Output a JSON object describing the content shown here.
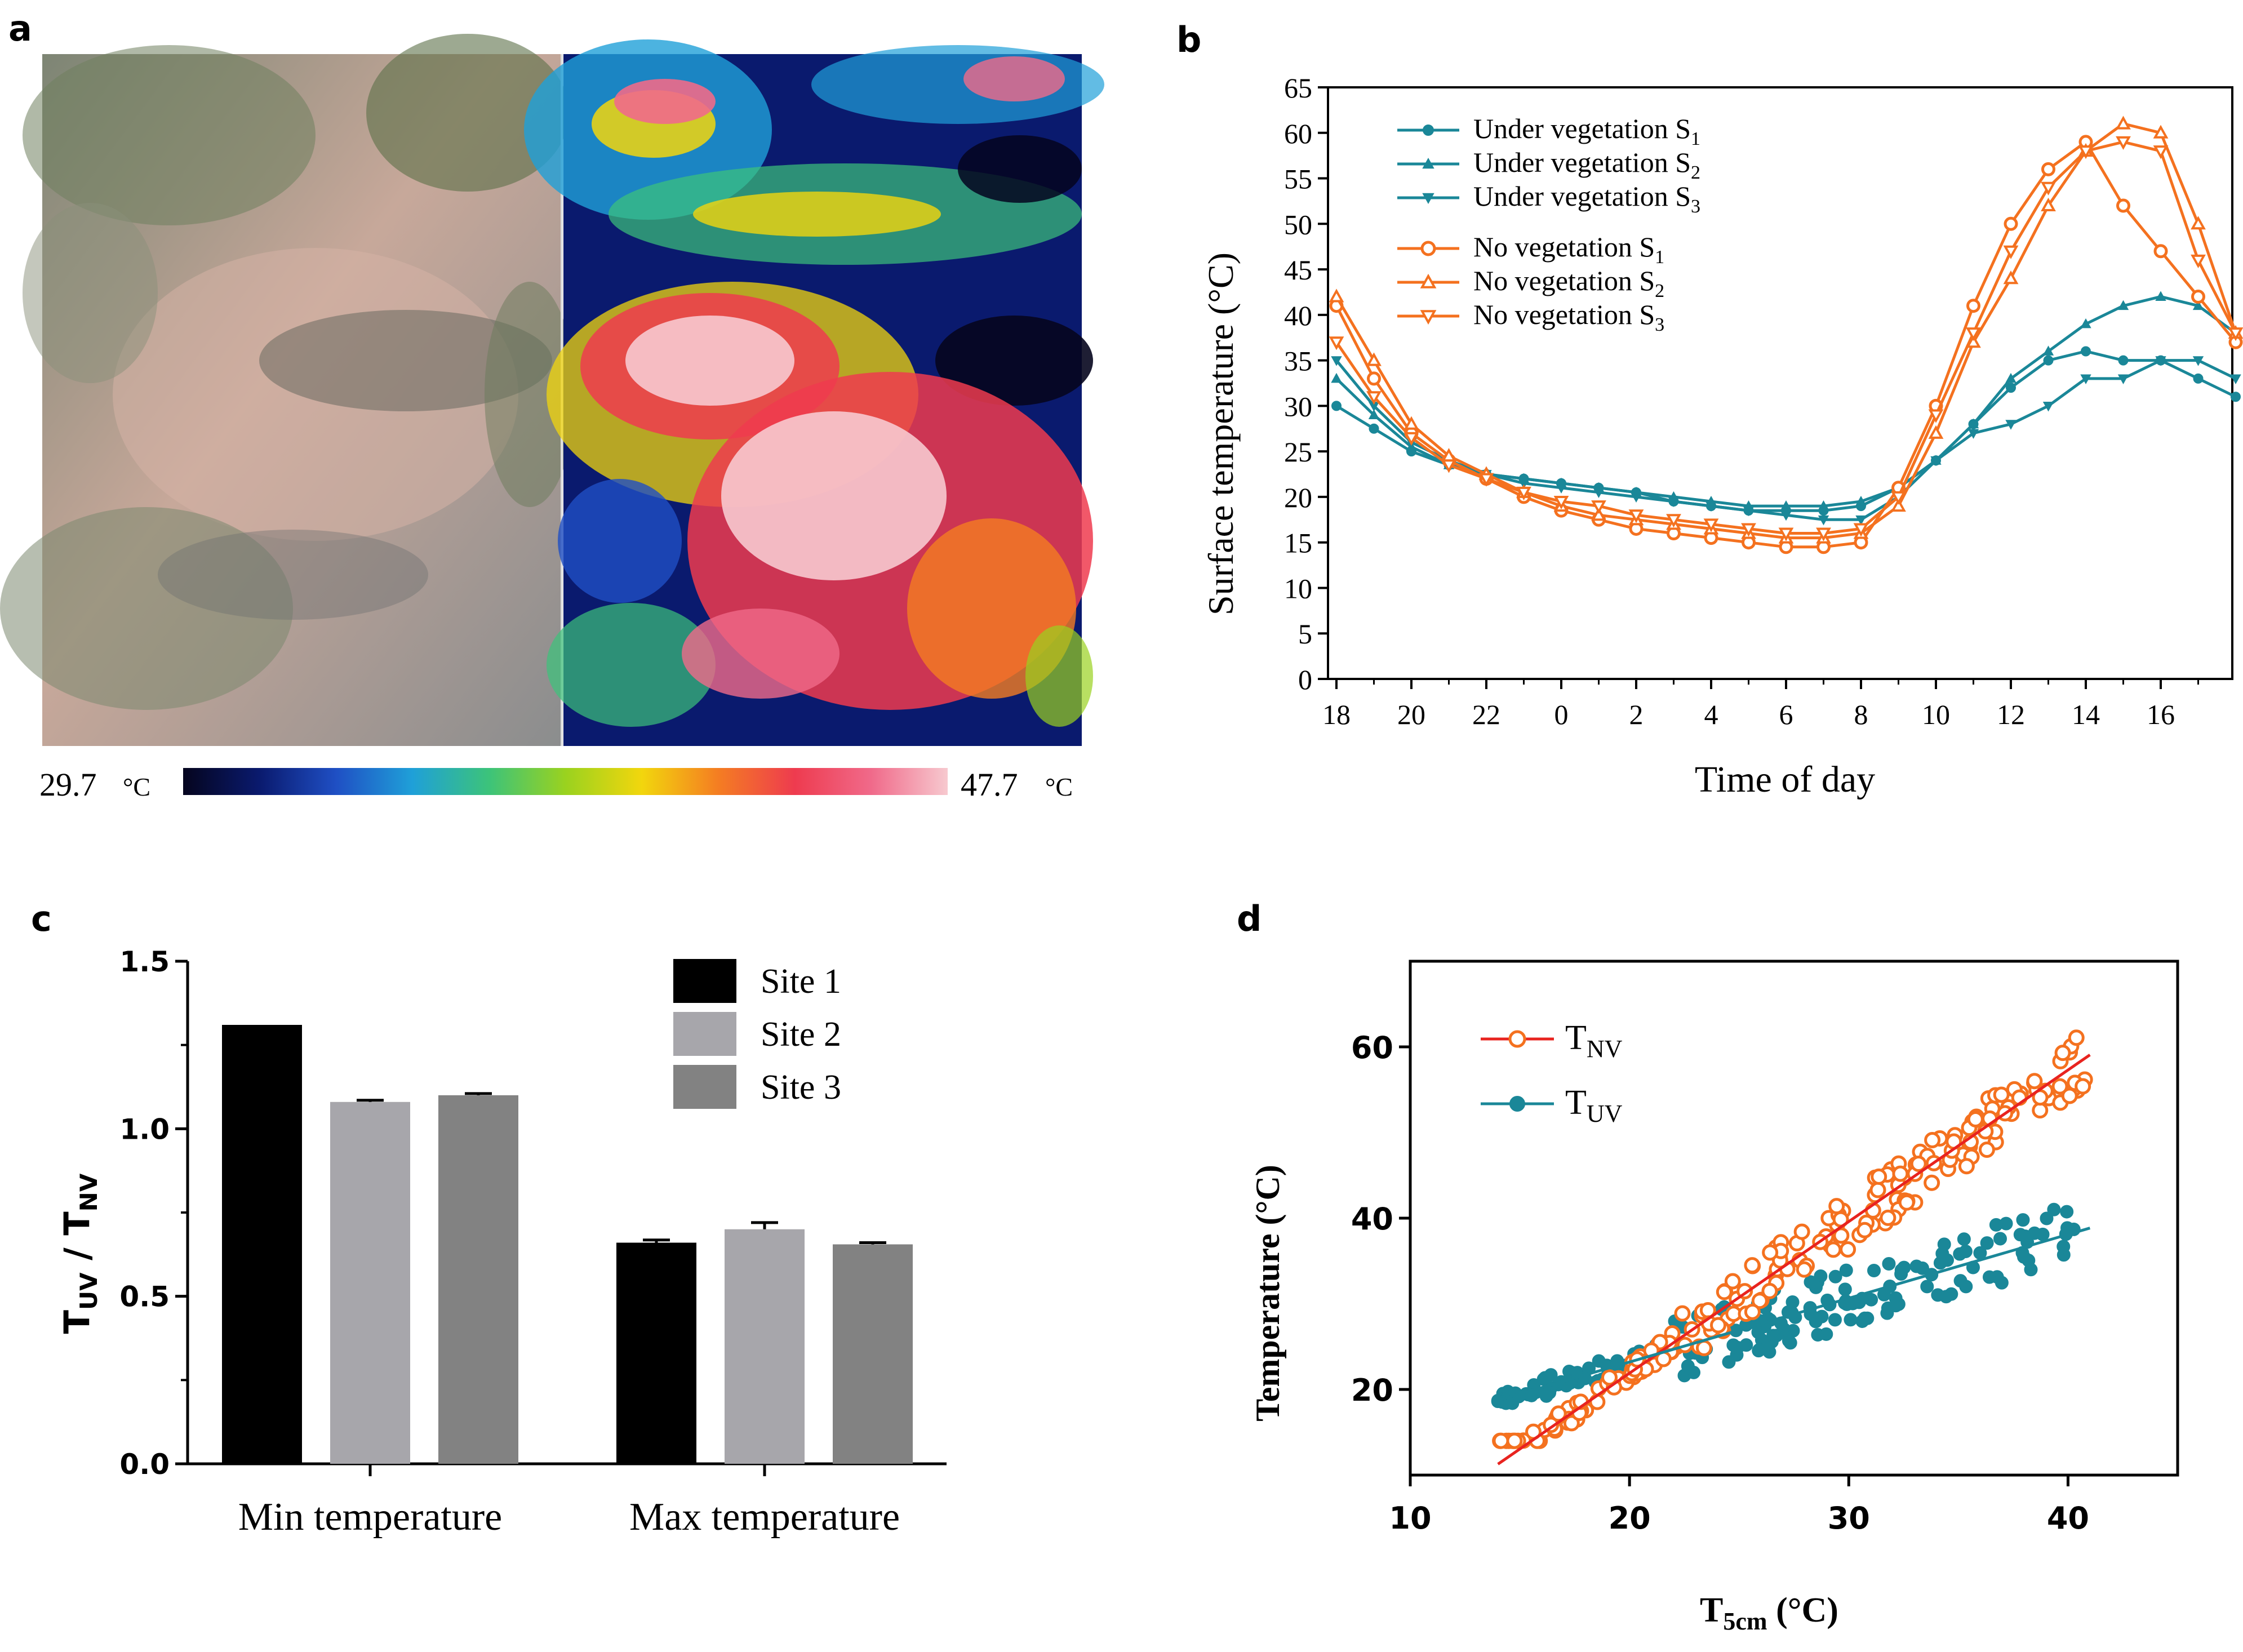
{
  "panels": {
    "a": {
      "letter": "a",
      "min_label": "29.7",
      "max_label": "47.7",
      "unit": "°C",
      "gradient_colors": [
        "#05051e",
        "#0a1a6e",
        "#1f4fc4",
        "#1fa0d8",
        "#3cc37a",
        "#9ad21f",
        "#f2d60d",
        "#f47d22",
        "#ee3b4f",
        "#f06a8a",
        "#f7c9cf"
      ]
    },
    "b": {
      "letter": "b"
    },
    "c": {
      "letter": "c"
    },
    "d": {
      "letter": "d"
    }
  },
  "chart_data": [
    {
      "id": "b",
      "type": "line",
      "xlabel": "Time of day",
      "ylabel": "Surface temperature (°C)",
      "ylim": [
        0,
        65
      ],
      "yticks": [
        "0",
        "5",
        "10",
        "15",
        "20",
        "25",
        "30",
        "35",
        "40",
        "45",
        "50",
        "55",
        "60",
        "65"
      ],
      "xticks": [
        "18",
        "20",
        "22",
        "0",
        "2",
        "4",
        "6",
        "8",
        "10",
        "12",
        "14",
        "16"
      ],
      "x_hours_from_18": [
        0,
        1,
        2,
        3,
        4,
        5,
        6,
        7,
        8,
        9,
        10,
        11,
        12,
        13,
        14,
        15,
        16,
        17,
        18,
        19,
        20,
        21,
        22,
        23,
        24
      ],
      "legend": [
        {
          "name": "Under vegetation S1",
          "base": "Under vegetation S",
          "sub": "1"
        },
        {
          "name": "Under vegetation S2",
          "base": "Under vegetation S",
          "sub": "2"
        },
        {
          "name": "Under vegetation S3",
          "base": "Under vegetation S",
          "sub": "3"
        },
        {
          "name": "No vegetation S1",
          "base": "No vegetation S",
          "sub": "1"
        },
        {
          "name": "No vegetation S2",
          "base": "No vegetation S",
          "sub": "2"
        },
        {
          "name": "No vegetation S3",
          "base": "No vegetation S",
          "sub": "3"
        }
      ],
      "colors": {
        "under": "#1a8798",
        "no": "#f4711f"
      },
      "series": [
        {
          "name": "Under vegetation S1",
          "group": "under",
          "marker": "circle",
          "values": [
            30,
            27.5,
            25,
            23.5,
            22.5,
            22,
            21.5,
            21,
            20.5,
            19.5,
            19,
            18.5,
            18.5,
            18.5,
            19,
            21,
            24,
            28,
            32,
            35,
            36,
            35,
            35,
            33,
            31
          ]
        },
        {
          "name": "Under vegetation S2",
          "group": "under",
          "marker": "triangle-up",
          "values": [
            33,
            29,
            25.5,
            23.5,
            22.5,
            22,
            21.5,
            21,
            20.5,
            20,
            19.5,
            19,
            19,
            19,
            19.5,
            21,
            24,
            28,
            33,
            36,
            39,
            41,
            42,
            41,
            38
          ]
        },
        {
          "name": "Under vegetation S3",
          "group": "under",
          "marker": "triangle-down",
          "values": [
            35,
            30,
            26,
            24,
            22.5,
            21.5,
            21,
            20.5,
            20,
            19.5,
            19,
            18.5,
            18,
            17.5,
            17.5,
            20,
            24,
            27,
            28,
            30,
            33,
            33,
            35,
            35,
            33
          ]
        },
        {
          "name": "No vegetation S1",
          "group": "no",
          "marker": "circle",
          "values": [
            41,
            33,
            27,
            24,
            22,
            20,
            18.5,
            17.5,
            16.5,
            16,
            15.5,
            15,
            14.5,
            14.5,
            15,
            21,
            30,
            41,
            50,
            56,
            59,
            52,
            47,
            42,
            37
          ]
        },
        {
          "name": "No vegetation S2",
          "group": "no",
          "marker": "triangle-up",
          "values": [
            42,
            35,
            28,
            24.5,
            22.5,
            20.5,
            19,
            18,
            17.5,
            17,
            16.5,
            16,
            15.5,
            15.5,
            16,
            19,
            27,
            37,
            44,
            52,
            58,
            61,
            60,
            50,
            38
          ]
        },
        {
          "name": "No vegetation S3",
          "group": "no",
          "marker": "triangle-down",
          "values": [
            37,
            31,
            26.5,
            23.5,
            22,
            20.5,
            19.5,
            19,
            18,
            17.5,
            17,
            16.5,
            16,
            16,
            16.5,
            20,
            29,
            38,
            47,
            54,
            58,
            59,
            58,
            46,
            38
          ]
        }
      ]
    },
    {
      "id": "c",
      "type": "bar",
      "ylabel_base": "T",
      "ylabel_sub1": "UV",
      "ylabel_mid": " / T",
      "ylabel_sub2": "NV",
      "ylim": [
        0,
        1.5
      ],
      "yticks": [
        "0.0",
        "0.5",
        "1.0",
        "1.5"
      ],
      "categories": [
        "Min temperature",
        "Max temperature"
      ],
      "series": [
        {
          "name": "Site 1",
          "color": "#000000",
          "values": [
            1.31,
            0.66
          ],
          "errors": [
            0,
            0.008
          ]
        },
        {
          "name": "Site 2",
          "color": "#a7a6ab",
          "values": [
            1.08,
            0.7
          ],
          "errors": [
            0.005,
            0.02
          ]
        },
        {
          "name": "Site 3",
          "color": "#828282",
          "values": [
            1.1,
            0.655
          ],
          "errors": [
            0.005,
            0.005
          ]
        }
      ]
    },
    {
      "id": "d",
      "type": "scatter",
      "xlabel_base": "T",
      "xlabel_sub": "5cm",
      "xlabel_unit": " (°C)",
      "ylabel": "Temperature (°C)",
      "xlim": [
        10,
        45
      ],
      "ylim": [
        10,
        70
      ],
      "xticks": [
        "10",
        "20",
        "30",
        "40"
      ],
      "yticks": [
        "20",
        "40",
        "60"
      ],
      "series": [
        {
          "name": "TNV",
          "base": "T",
          "sub": "NV",
          "color": "#f4711f",
          "line_color": "#e8231f",
          "marker": "open-circle",
          "fit": {
            "slope": 1.77,
            "intercept": -13.5,
            "x_range": [
              14,
              41
            ]
          }
        },
        {
          "name": "TUV",
          "base": "T",
          "sub": "UV",
          "color": "#1a8798",
          "line_color": "#1a8798",
          "marker": "filled-circle",
          "fit": {
            "slope": 0.745,
            "intercept": 8.3,
            "x_range": [
              14,
              41
            ]
          }
        }
      ]
    }
  ]
}
